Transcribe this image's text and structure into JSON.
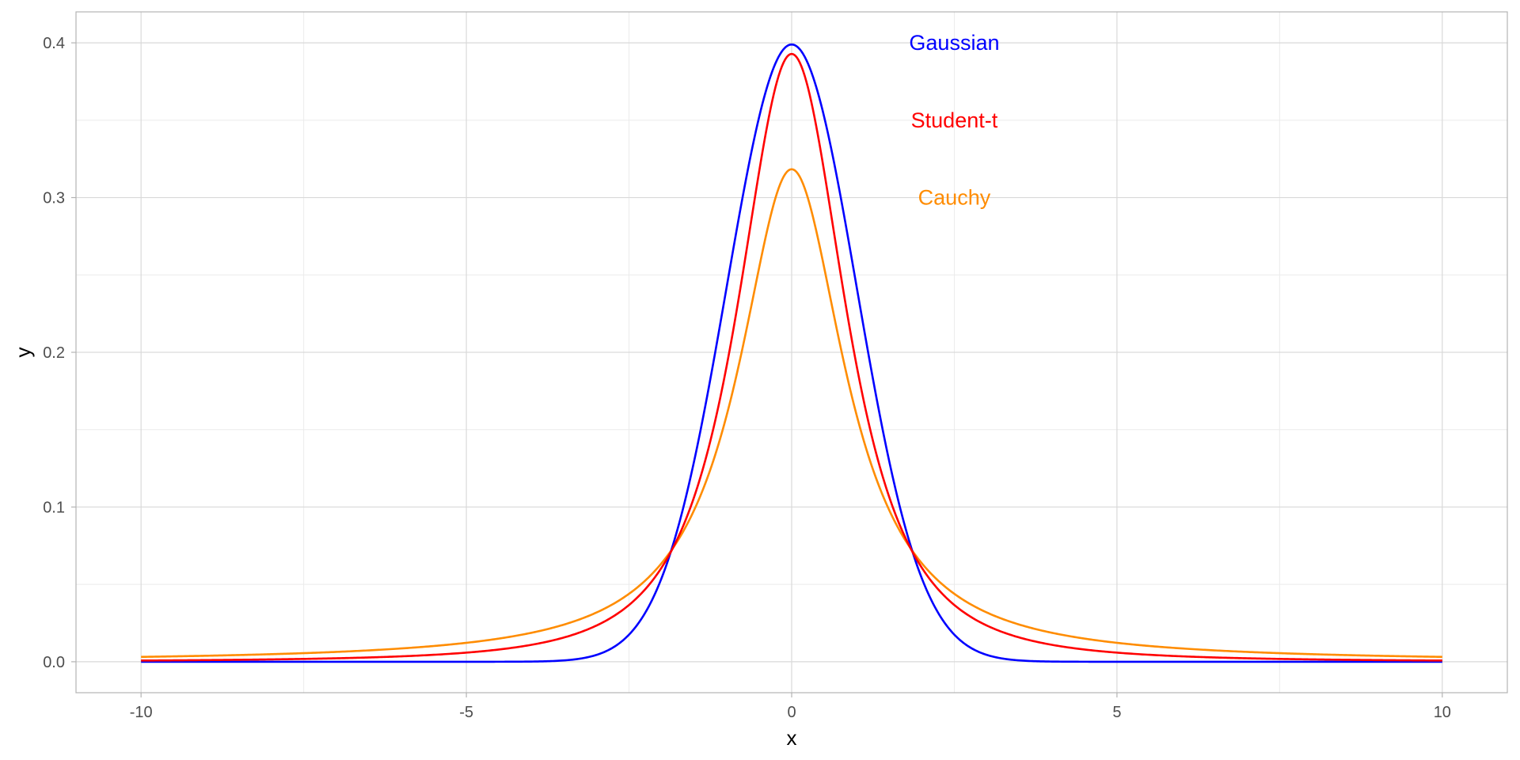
{
  "chart_data": {
    "type": "line",
    "title": "",
    "xlabel": "x",
    "ylabel": "y",
    "xlim": [
      -11,
      11
    ],
    "ylim": [
      -0.02,
      0.42
    ],
    "x_ticks": [
      -10,
      -5,
      0,
      5,
      10
    ],
    "x_tick_labels": [
      "-10",
      "-5",
      "0",
      "5",
      "10"
    ],
    "y_ticks": [
      0.0,
      0.1,
      0.2,
      0.3,
      0.4
    ],
    "y_tick_labels": [
      "0.0",
      "0.1",
      "0.2",
      "0.3",
      "0.4"
    ],
    "grid": true,
    "legend": "direct labels near peak, upper right of curves",
    "series": [
      {
        "name": "Gaussian",
        "color": "#0000ff",
        "distribution": "normal, mean 0, sd 1",
        "peak": 0.399,
        "x": [
          -10,
          -4,
          -3,
          -2.5,
          -2,
          -1.5,
          -1,
          -0.5,
          0,
          0.5,
          1,
          1.5,
          2,
          2.5,
          3,
          4,
          10
        ],
        "values": [
          0.0,
          0.0001,
          0.0044,
          0.0175,
          0.054,
          0.1295,
          0.242,
          0.3521,
          0.3989,
          0.3521,
          0.242,
          0.1295,
          0.054,
          0.0175,
          0.0044,
          0.0001,
          0.0
        ]
      },
      {
        "name": "Student-t",
        "color": "#ff0000",
        "distribution": "Student-t, 2 degrees of freedom, scale 0.9",
        "peak": 0.368,
        "x": [
          -10,
          -7.5,
          -5,
          -4,
          -3,
          -2.5,
          -2,
          -1.5,
          -1,
          -0.5,
          0,
          0.5,
          1,
          1.5,
          2,
          2.5,
          3,
          4,
          5,
          7.5,
          10
        ],
        "values": [
          0.0008,
          0.0019,
          0.0061,
          0.0114,
          0.0253,
          0.0406,
          0.0677,
          0.1165,
          0.1961,
          0.2975,
          0.3675,
          0.2975,
          0.1961,
          0.1165,
          0.0677,
          0.0406,
          0.0253,
          0.0114,
          0.0061,
          0.0019,
          0.0008
        ]
      },
      {
        "name": "Cauchy",
        "color": "#ff8c00",
        "distribution": "Cauchy, location 0, scale 1",
        "peak": 0.318,
        "x": [
          -10,
          -7.5,
          -5,
          -4,
          -3,
          -2.5,
          -2,
          -1.5,
          -1,
          -0.5,
          0,
          0.5,
          1,
          1.5,
          2,
          2.5,
          3,
          4,
          5,
          7.5,
          10
        ],
        "values": [
          0.0032,
          0.0056,
          0.0122,
          0.0187,
          0.0318,
          0.0439,
          0.0637,
          0.0979,
          0.1592,
          0.2546,
          0.3183,
          0.2546,
          0.1592,
          0.0979,
          0.0637,
          0.0439,
          0.0318,
          0.0187,
          0.0122,
          0.0056,
          0.0032
        ]
      }
    ],
    "annotations": [
      {
        "text": "Gaussian",
        "x": 2.5,
        "y": 0.4,
        "color": "#0000ff"
      },
      {
        "text": "Student-t",
        "x": 2.5,
        "y": 0.35,
        "color": "#ff0000"
      },
      {
        "text": "Cauchy",
        "x": 2.5,
        "y": 0.3,
        "color": "#ff8c00"
      }
    ]
  }
}
